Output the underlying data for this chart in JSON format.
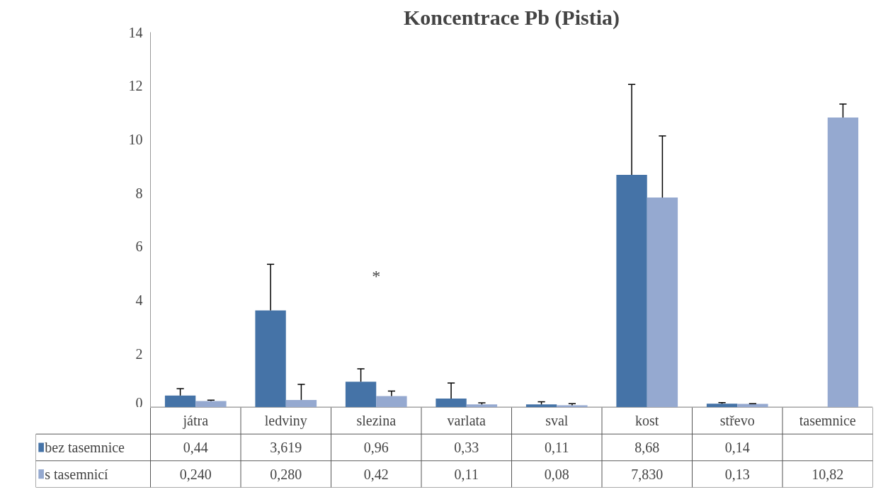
{
  "chart_data": {
    "type": "bar",
    "title": "Koncentrace Pb (Pistia)",
    "categories": [
      "játra",
      "ledviny",
      "slezina",
      "varlata",
      "sval",
      "kost",
      "střevo",
      "tasemnice"
    ],
    "series": [
      {
        "name": "bez tasemnice",
        "color": "#4573a7",
        "values": [
          0.44,
          3.619,
          0.96,
          0.33,
          0.11,
          8.68,
          0.14,
          null
        ],
        "value_labels": [
          "0,44",
          "3,619",
          "0,96",
          "0,33",
          "0,11",
          "8,68",
          "0,14",
          null
        ],
        "errors": [
          [
            0.44,
            0.7
          ],
          [
            3.619,
            5.34
          ],
          [
            0.96,
            1.44
          ],
          [
            0.33,
            0.91
          ],
          [
            0.11,
            0.21
          ],
          [
            8.68,
            12.05
          ],
          [
            0.14,
            0.18
          ],
          null
        ]
      },
      {
        "name": "s tasemnicí",
        "color": "#95a9d0",
        "values": [
          0.24,
          0.28,
          0.42,
          0.11,
          0.08,
          7.83,
          0.13,
          10.82
        ],
        "value_labels": [
          "0,240",
          "0,280",
          "0,42",
          "0,11",
          "0,08",
          "7,830",
          "0,13",
          "10,82"
        ],
        "errors": [
          [
            0.24,
            0.27
          ],
          [
            0.28,
            0.86
          ],
          [
            0.42,
            0.61
          ],
          [
            0.11,
            0.17
          ],
          [
            0.08,
            0.14
          ],
          [
            7.83,
            10.13
          ],
          [
            0.13,
            0.14
          ],
          [
            10.82,
            11.32
          ]
        ]
      }
    ],
    "ylim": [
      0,
      14
    ],
    "yticks": [
      0,
      2,
      4,
      6,
      8,
      10,
      12,
      14
    ],
    "annotations": [
      "*"
    ],
    "grid": false,
    "legend": "bottom left",
    "data_labels": true
  }
}
